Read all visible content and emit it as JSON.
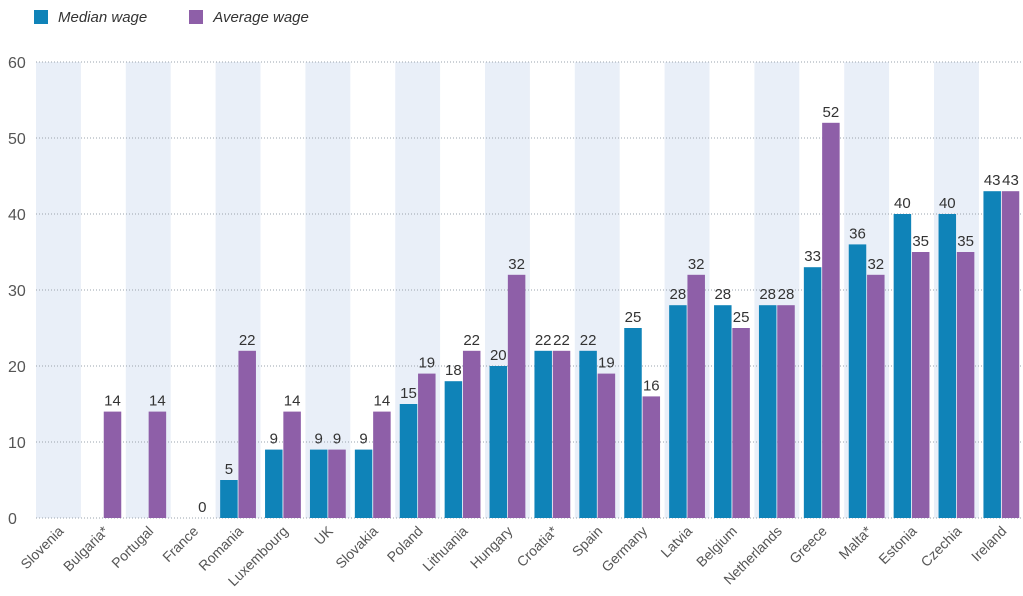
{
  "chart_data": {
    "type": "bar",
    "categories": [
      "Slovenia",
      "Bulgaria*",
      "Portugal",
      "France",
      "Romania",
      "Luxembourg",
      "UK",
      "Slovakia",
      "Poland",
      "Lithuania",
      "Hungary",
      "Croatia*",
      "Spain",
      "Germany",
      "Latvia",
      "Belgium",
      "Netherlands",
      "Greece",
      "Malta*",
      "Estonia",
      "Czechia",
      "Ireland"
    ],
    "series": [
      {
        "name": "Median wage",
        "color": "#0f83b8",
        "values": [
          null,
          null,
          null,
          null,
          5,
          9,
          9,
          9,
          15,
          18,
          20,
          22,
          22,
          25,
          28,
          28,
          28,
          33,
          36,
          40,
          40,
          43
        ],
        "labels": [
          "",
          "",
          "",
          "",
          "5",
          "9",
          "9",
          "9",
          "15",
          "18",
          "20",
          "22",
          "22",
          "25",
          "28",
          "28",
          "28",
          "33",
          "36",
          "40",
          "40",
          "43"
        ]
      },
      {
        "name": "Average wage",
        "color": "#8e5fa8",
        "values": [
          null,
          14,
          14,
          0,
          22,
          14,
          9,
          14,
          19,
          22,
          32,
          22,
          19,
          16,
          32,
          25,
          28,
          52,
          32,
          35,
          35,
          43
        ],
        "labels": [
          "",
          "14",
          "14",
          "0",
          "22",
          "14",
          "9",
          "14",
          "19",
          "22",
          "32",
          "22",
          "19",
          "16",
          "32",
          "25",
          "28",
          "52",
          "32",
          "35",
          "35",
          "43"
        ]
      }
    ],
    "yticks": [
      "0",
      "10",
      "20",
      "30",
      "40",
      "50",
      "60"
    ],
    "ylim": [
      0,
      60
    ],
    "grid": true,
    "legend_position": "top-left",
    "band_color": "#e9eff8"
  }
}
